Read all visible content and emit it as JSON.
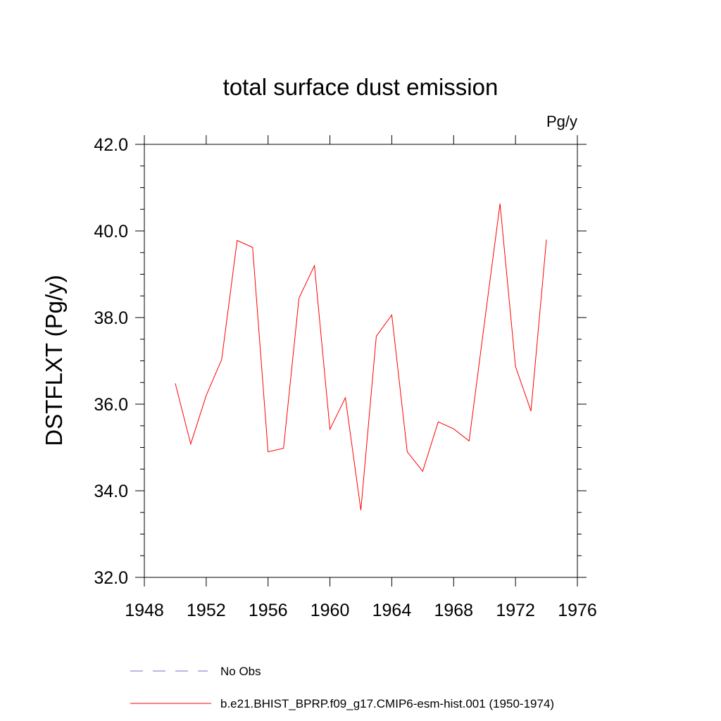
{
  "chart_data": {
    "type": "line",
    "title": "total surface dust emission",
    "units_label": "Pg/y",
    "ylabel": "DSTFLXT  (Pg/y)",
    "xlabel": "",
    "xlim": [
      1948,
      1976
    ],
    "ylim": [
      32.0,
      42.0
    ],
    "x_ticks": [
      "1948",
      "1952",
      "1956",
      "1960",
      "1964",
      "1968",
      "1972",
      "1976"
    ],
    "y_ticks": [
      "32.0",
      "34.0",
      "36.0",
      "38.0",
      "40.0",
      "42.0"
    ],
    "grid": false,
    "legend_position": "bottom",
    "series": [
      {
        "name": "No Obs",
        "color": "#7b68c8",
        "line_style": "dashed",
        "x": [],
        "values": []
      },
      {
        "name": "b.e21.BHIST_BPRP.f09_g17.CMIP6-esm-hist.001 (1950-1974)",
        "color": "#ff0000",
        "line_style": "solid",
        "x": [
          1950,
          1951,
          1952,
          1953,
          1954,
          1955,
          1956,
          1957,
          1958,
          1959,
          1960,
          1961,
          1962,
          1963,
          1964,
          1965,
          1966,
          1967,
          1968,
          1969,
          1970,
          1971,
          1972,
          1973,
          1974
        ],
        "values": [
          36.48,
          35.08,
          36.2,
          37.03,
          39.78,
          39.62,
          34.9,
          34.98,
          38.45,
          39.2,
          35.42,
          36.15,
          33.55,
          37.57,
          38.06,
          34.9,
          34.45,
          35.59,
          35.43,
          35.15,
          37.9,
          40.63,
          36.87,
          35.84,
          39.8
        ]
      }
    ]
  }
}
